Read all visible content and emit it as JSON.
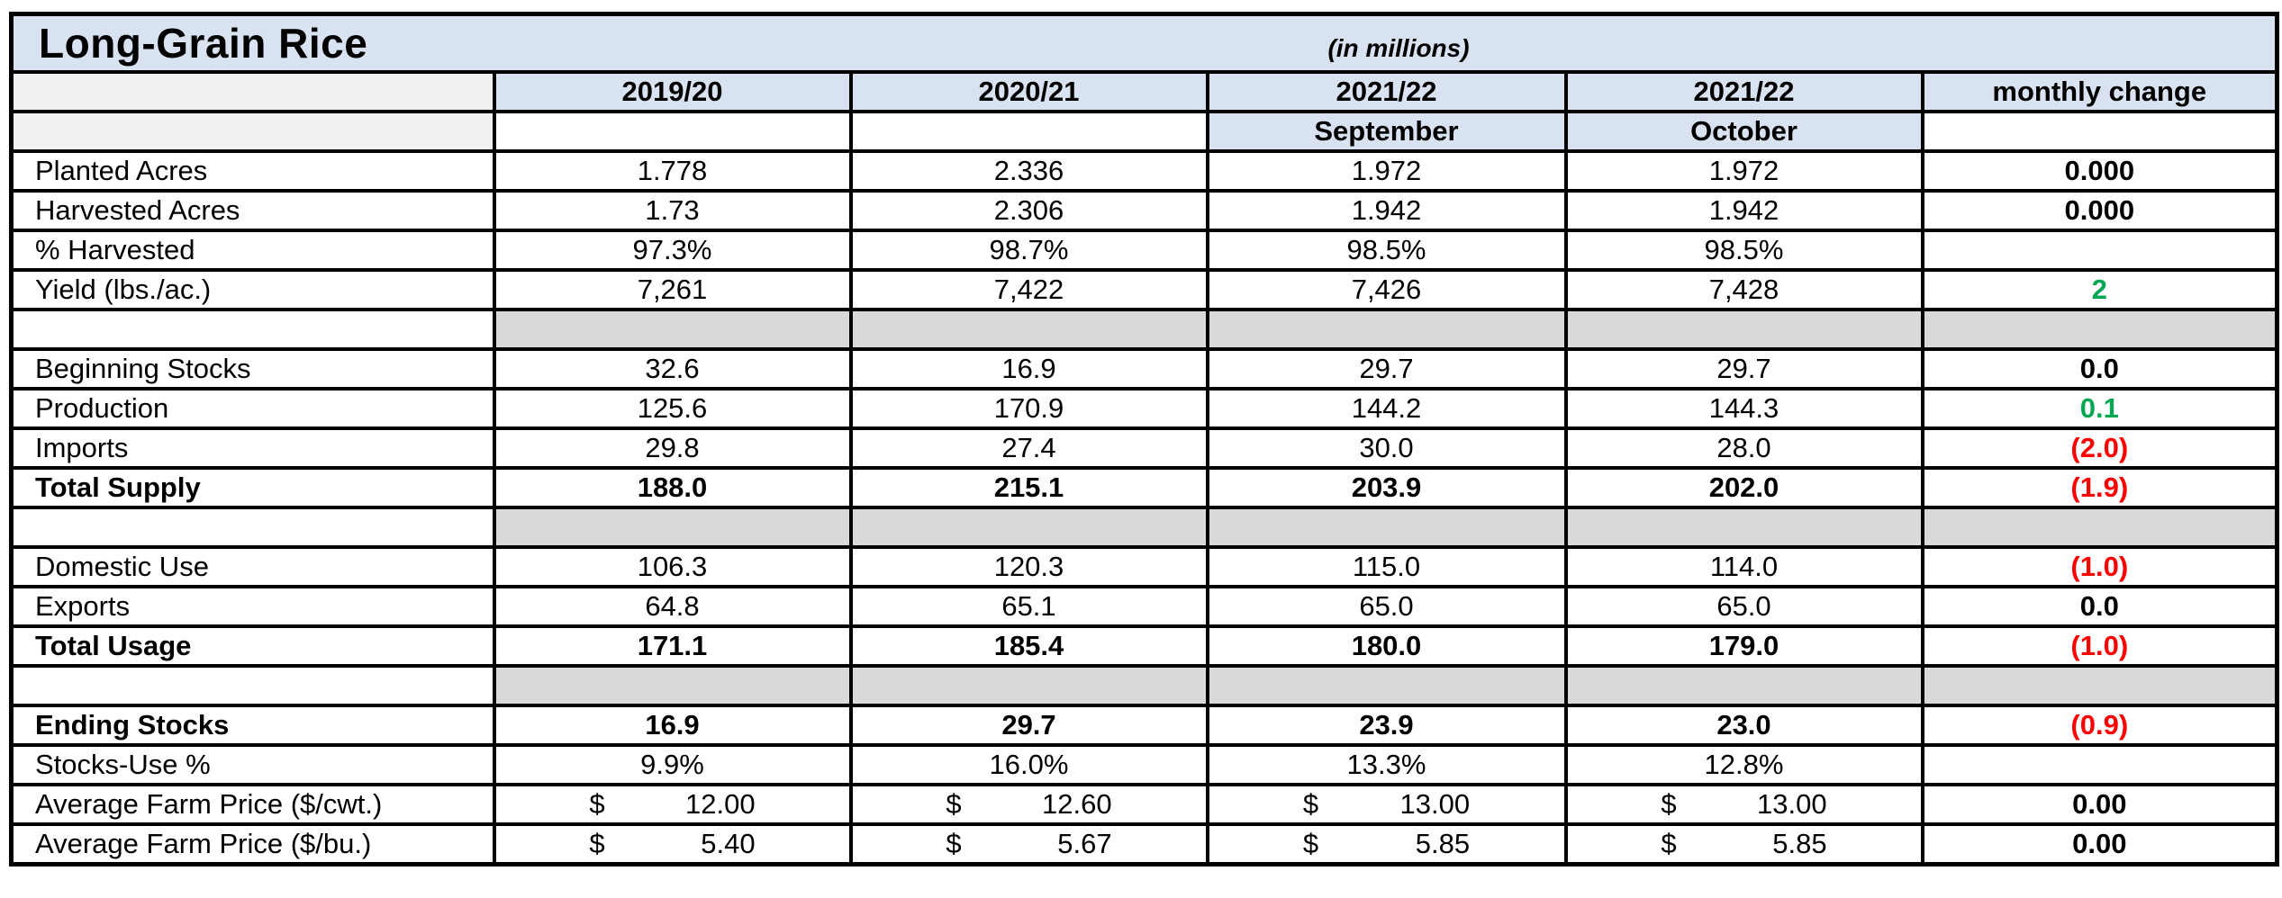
{
  "title": "Long-Grain Rice",
  "subtitle": "(in millions)",
  "header": {
    "columns": [
      "2019/20",
      "2020/21",
      "2021/22",
      "2021/22",
      "monthly change"
    ],
    "subcolumns": [
      "",
      "",
      "September",
      "October",
      ""
    ]
  },
  "colors": {
    "header_blue": "#d9e2f0",
    "corner_gray": "#f1f1f1",
    "spacer_gray": "#d9d9d9",
    "positive_green": "#00a651",
    "negative_red": "#ff0000",
    "border_black": "#000000"
  },
  "rows": [
    {
      "type": "data",
      "label": "Planted Acres",
      "bold": false,
      "values": [
        "1.778",
        "2.336",
        "1.972",
        "1.972"
      ],
      "change": "0.000",
      "change_style": "plain"
    },
    {
      "type": "data",
      "label": "Harvested Acres",
      "bold": false,
      "values": [
        "1.73",
        "2.306",
        "1.942",
        "1.942"
      ],
      "change": "0.000",
      "change_style": "plain"
    },
    {
      "type": "data",
      "label": "% Harvested",
      "bold": false,
      "values": [
        "97.3%",
        "98.7%",
        "98.5%",
        "98.5%"
      ],
      "change": "",
      "change_style": "plain"
    },
    {
      "type": "data",
      "label": "Yield  (lbs./ac.)",
      "bold": false,
      "values": [
        "7,261",
        "7,422",
        "7,426",
        "7,428"
      ],
      "change": "2",
      "change_style": "green"
    },
    {
      "type": "spacer"
    },
    {
      "type": "data",
      "label": "Beginning Stocks",
      "bold": false,
      "values": [
        "32.6",
        "16.9",
        "29.7",
        "29.7"
      ],
      "change": "0.0",
      "change_style": "plain"
    },
    {
      "type": "data",
      "label": "Production",
      "bold": false,
      "values": [
        "125.6",
        "170.9",
        "144.2",
        "144.3"
      ],
      "change": "0.1",
      "change_style": "green"
    },
    {
      "type": "data",
      "label": "Imports",
      "bold": false,
      "values": [
        "29.8",
        "27.4",
        "30.0",
        "28.0"
      ],
      "change": "(2.0)",
      "change_style": "red"
    },
    {
      "type": "data",
      "label": "Total Supply",
      "bold": true,
      "values": [
        "188.0",
        "215.1",
        "203.9",
        "202.0"
      ],
      "change": "(1.9)",
      "change_style": "red"
    },
    {
      "type": "spacer"
    },
    {
      "type": "data",
      "label": "Domestic Use",
      "bold": false,
      "values": [
        "106.3",
        "120.3",
        "115.0",
        "114.0"
      ],
      "change": "(1.0)",
      "change_style": "red"
    },
    {
      "type": "data",
      "label": "Exports",
      "bold": false,
      "values": [
        "64.8",
        "65.1",
        "65.0",
        "65.0"
      ],
      "change": "0.0",
      "change_style": "plain"
    },
    {
      "type": "data",
      "label": "Total Usage",
      "bold": true,
      "values": [
        "171.1",
        "185.4",
        "180.0",
        "179.0"
      ],
      "change": "(1.0)",
      "change_style": "red"
    },
    {
      "type": "spacer"
    },
    {
      "type": "data",
      "label": "Ending Stocks",
      "bold": true,
      "values": [
        "16.9",
        "29.7",
        "23.9",
        "23.0"
      ],
      "change": "(0.9)",
      "change_style": "red"
    },
    {
      "type": "data",
      "label": "Stocks-Use %",
      "bold": false,
      "values": [
        "9.9%",
        "16.0%",
        "13.3%",
        "12.8%"
      ],
      "change": "",
      "change_style": "plain"
    },
    {
      "type": "price",
      "label": "Average Farm Price ($/cwt.)",
      "bold": false,
      "currency": "$",
      "values": [
        "12.00",
        "12.60",
        "13.00",
        "13.00"
      ],
      "change": "0.00",
      "change_style": "plain"
    },
    {
      "type": "price",
      "label": "Average Farm Price ($/bu.)",
      "bold": false,
      "currency": "$",
      "values": [
        "5.40",
        "5.67",
        "5.85",
        "5.85"
      ],
      "change": "0.00",
      "change_style": "plain"
    }
  ]
}
